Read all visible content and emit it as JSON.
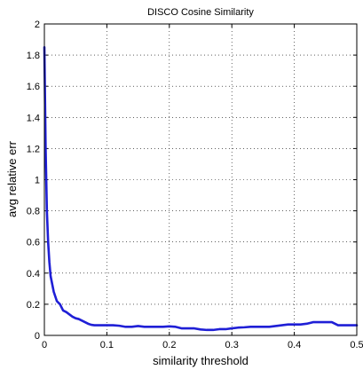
{
  "chart_data": {
    "type": "line",
    "title": "DISCO Cosine Similarity",
    "xlabel": "similarity threshold",
    "ylabel": "avg relative err",
    "xlim": [
      0,
      0.5
    ],
    "ylim": [
      0,
      2
    ],
    "x_ticks": [
      "0",
      "0.1",
      "0.2",
      "0.3",
      "0.4",
      "0.5"
    ],
    "y_ticks": [
      "0",
      "0.2",
      "0.4",
      "0.6",
      "0.8",
      "1",
      "1.2",
      "1.4",
      "1.6",
      "1.8",
      "2"
    ],
    "grid": true,
    "legend": "none",
    "series": [
      {
        "color": "#1f1fd6",
        "x": [
          0.0,
          0.002,
          0.004,
          0.006,
          0.008,
          0.01,
          0.015,
          0.02,
          0.025,
          0.03,
          0.035,
          0.04,
          0.045,
          0.05,
          0.055,
          0.06,
          0.065,
          0.07,
          0.075,
          0.08,
          0.09,
          0.1,
          0.11,
          0.12,
          0.13,
          0.14,
          0.15,
          0.16,
          0.17,
          0.18,
          0.19,
          0.2,
          0.21,
          0.22,
          0.23,
          0.24,
          0.25,
          0.26,
          0.27,
          0.28,
          0.29,
          0.3,
          0.31,
          0.32,
          0.33,
          0.34,
          0.35,
          0.36,
          0.37,
          0.38,
          0.39,
          0.4,
          0.41,
          0.42,
          0.43,
          0.44,
          0.45,
          0.46,
          0.47,
          0.48,
          0.49,
          0.5
        ],
        "y": [
          1.85,
          1.2,
          0.8,
          0.6,
          0.47,
          0.38,
          0.28,
          0.22,
          0.2,
          0.16,
          0.15,
          0.135,
          0.12,
          0.11,
          0.105,
          0.095,
          0.085,
          0.075,
          0.068,
          0.065,
          0.065,
          0.065,
          0.065,
          0.062,
          0.055,
          0.055,
          0.06,
          0.055,
          0.055,
          0.055,
          0.055,
          0.058,
          0.055,
          0.045,
          0.045,
          0.045,
          0.038,
          0.035,
          0.035,
          0.04,
          0.04,
          0.045,
          0.05,
          0.052,
          0.055,
          0.055,
          0.055,
          0.055,
          0.06,
          0.065,
          0.07,
          0.07,
          0.07,
          0.075,
          0.085,
          0.085,
          0.085,
          0.085,
          0.065,
          0.065,
          0.065,
          0.065
        ]
      }
    ]
  }
}
